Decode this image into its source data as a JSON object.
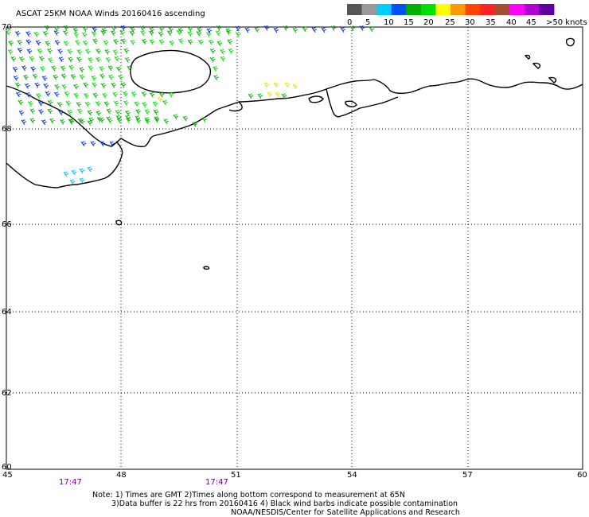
{
  "title": "ASCAT 25KM NOAA Winds 20160416 ascending",
  "legend": {
    "labels": [
      "0",
      "5",
      "10",
      "15",
      "20",
      "25",
      "30",
      "35",
      "40",
      "45",
      ">50 knots"
    ],
    "colors": [
      "#555555",
      "#999999",
      "#00ccff",
      "#0050ff",
      "#00b000",
      "#00e000",
      "#ffff00",
      "#ff9900",
      "#ff4400",
      "#ff2222",
      "#a05030",
      "#ff00ff",
      "#b000d0",
      "#6000a0"
    ]
  },
  "axes": {
    "lon_ticks": [
      "45",
      "48",
      "51",
      "54",
      "57",
      "60"
    ],
    "lat_ticks": [
      "70",
      "68",
      "66",
      "64",
      "62",
      "60"
    ],
    "lon_range": [
      45,
      60
    ],
    "lat_range": [
      60,
      70
    ]
  },
  "times": [
    "17:47",
    "17:47"
  ],
  "notes": {
    "line1": "Note: 1) Times are GMT 2)Times along bottom correspond to measurement at 65N",
    "line2": "3)Data buffer is 22 hrs from 20160416 4) Black wind barbs indicate possible contamination",
    "line3": "NOAA/NESDIS/Center for Satellite Applications and Research"
  }
}
